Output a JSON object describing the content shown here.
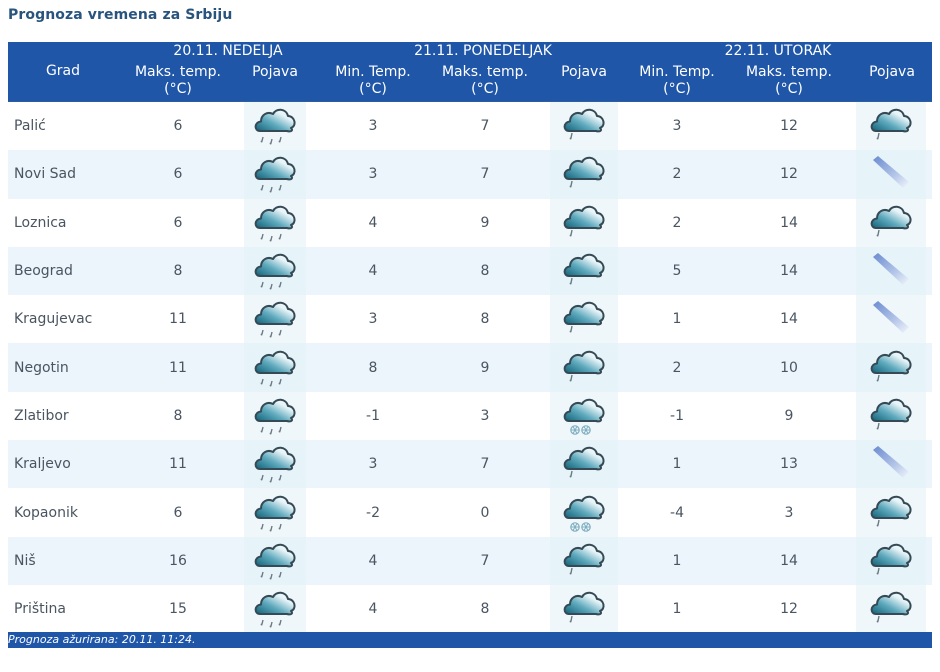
{
  "page": {
    "title": "Prognoza vremena za Srbiju",
    "footer": "Prognoza ažurirana:  20.11. 11:24."
  },
  "colors": {
    "header_bg": "#1f56a8",
    "title_text": "#28547e",
    "row_alt_bg": "#ecf5fb",
    "cloud_dark": "#1b6f86",
    "wind_streak": "#6f8fd0"
  },
  "header": {
    "days": [
      {
        "label": "20.11. NEDELJA"
      },
      {
        "label": "21.11. PONEDELJAK"
      },
      {
        "label": "22.11. UTORAK"
      }
    ],
    "columns": {
      "city": "Grad",
      "d1_max": [
        "Maks. temp.",
        "(°C)"
      ],
      "d1_icon": "Pojava",
      "d2_min": [
        "Min. Temp.",
        "(°C)"
      ],
      "d2_max": [
        "Maks. temp.",
        "(°C)"
      ],
      "d2_icon": "Pojava",
      "d3_min": [
        "Min. Temp.",
        "(°C)"
      ],
      "d3_max": [
        "Maks. temp.",
        "(°C)"
      ],
      "d3_icon": "Pojava"
    }
  },
  "icons": {
    "rain": "cloud-rain-icon",
    "light_rain": "cloud-light-rain-icon",
    "snow": "cloud-snow-icon",
    "wind": "wind-streak-icon"
  },
  "rows": [
    {
      "city": "Palić",
      "d1_max": "6",
      "d1_icon": "rain",
      "d2_min": "3",
      "d2_max": "7",
      "d2_icon": "light_rain",
      "d3_min": "3",
      "d3_max": "12",
      "d3_icon": "light_rain"
    },
    {
      "city": "Novi Sad",
      "d1_max": "6",
      "d1_icon": "rain",
      "d2_min": "3",
      "d2_max": "7",
      "d2_icon": "light_rain",
      "d3_min": "2",
      "d3_max": "12",
      "d3_icon": "wind"
    },
    {
      "city": "Loznica",
      "d1_max": "6",
      "d1_icon": "rain",
      "d2_min": "4",
      "d2_max": "9",
      "d2_icon": "light_rain",
      "d3_min": "2",
      "d3_max": "14",
      "d3_icon": "light_rain"
    },
    {
      "city": "Beograd",
      "d1_max": "8",
      "d1_icon": "rain",
      "d2_min": "4",
      "d2_max": "8",
      "d2_icon": "light_rain",
      "d3_min": "5",
      "d3_max": "14",
      "d3_icon": "wind"
    },
    {
      "city": "Kragujevac",
      "d1_max": "11",
      "d1_icon": "rain",
      "d2_min": "3",
      "d2_max": "8",
      "d2_icon": "light_rain",
      "d3_min": "1",
      "d3_max": "14",
      "d3_icon": "wind"
    },
    {
      "city": "Negotin",
      "d1_max": "11",
      "d1_icon": "rain",
      "d2_min": "8",
      "d2_max": "9",
      "d2_icon": "light_rain",
      "d3_min": "2",
      "d3_max": "10",
      "d3_icon": "light_rain"
    },
    {
      "city": "Zlatibor",
      "d1_max": "8",
      "d1_icon": "rain",
      "d2_min": "-1",
      "d2_max": "3",
      "d2_icon": "snow",
      "d3_min": "-1",
      "d3_max": "9",
      "d3_icon": "light_rain"
    },
    {
      "city": "Kraljevo",
      "d1_max": "11",
      "d1_icon": "rain",
      "d2_min": "3",
      "d2_max": "7",
      "d2_icon": "light_rain",
      "d3_min": "1",
      "d3_max": "13",
      "d3_icon": "wind"
    },
    {
      "city": "Kopaonik",
      "d1_max": "6",
      "d1_icon": "rain",
      "d2_min": "-2",
      "d2_max": "0",
      "d2_icon": "snow",
      "d3_min": "-4",
      "d3_max": "3",
      "d3_icon": "light_rain"
    },
    {
      "city": "Niš",
      "d1_max": "16",
      "d1_icon": "rain",
      "d2_min": "4",
      "d2_max": "7",
      "d2_icon": "light_rain",
      "d3_min": "1",
      "d3_max": "14",
      "d3_icon": "light_rain"
    },
    {
      "city": "Priština",
      "d1_max": "15",
      "d1_icon": "rain",
      "d2_min": "4",
      "d2_max": "8",
      "d2_icon": "light_rain",
      "d3_min": "1",
      "d3_max": "12",
      "d3_icon": "light_rain"
    }
  ]
}
